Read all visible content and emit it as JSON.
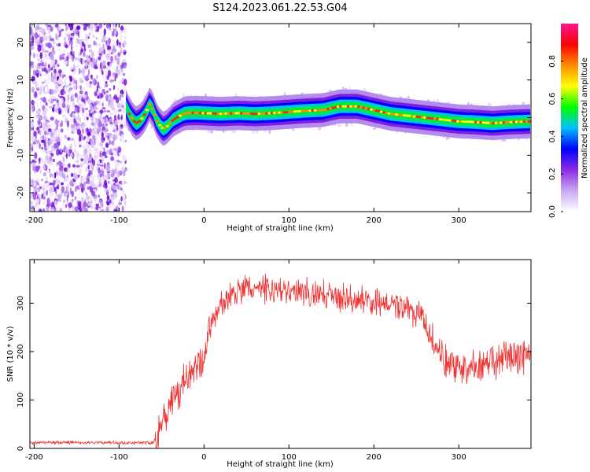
{
  "figure": {
    "title": "S124.2023.061.22.53.G04"
  },
  "chart_data": [
    {
      "type": "heatmap",
      "title": "S124.2023.061.22.53.G04",
      "xlabel": "Height of straight line (km)",
      "ylabel": "Frequency (Hz)",
      "xlim": [
        -205,
        385
      ],
      "ylim": [
        -25,
        25
      ],
      "xticks": [
        -200,
        -100,
        0,
        100,
        200,
        300
      ],
      "yticks": [
        -20,
        -10,
        0,
        10,
        20
      ],
      "colorbar": {
        "label": "Normalized spectral amplitude",
        "ticks": [
          0.0,
          0.2,
          0.4,
          0.6,
          0.8
        ],
        "range": [
          0,
          1
        ],
        "colors": [
          "#ffffff",
          "#c9a8f2",
          "#8a2be2",
          "#0000ff",
          "#00bfff",
          "#00ff00",
          "#ffff00",
          "#ff8c00",
          "#ff0000",
          "#ff1493"
        ]
      },
      "noise_region_x": [
        -205,
        -92
      ],
      "ridge": {
        "x": [
          -92,
          -88,
          -84,
          -80,
          -76,
          -72,
          -68,
          -64,
          -60,
          -56,
          -52,
          -48,
          -44,
          -40,
          -36,
          -32,
          -28,
          -24,
          -20,
          -10,
          0,
          20,
          40,
          60,
          80,
          100,
          120,
          140,
          160,
          180,
          200,
          220,
          240,
          260,
          280,
          300,
          320,
          340,
          360,
          385
        ],
        "frequency": [
          3.0,
          1.0,
          -0.5,
          -1.5,
          -1.0,
          0.0,
          1.5,
          3.5,
          2.0,
          -0.5,
          -2.0,
          -3.0,
          -2.5,
          -1.5,
          -0.5,
          0.0,
          0.5,
          1.0,
          1.2,
          1.3,
          1.2,
          1.0,
          1.2,
          1.0,
          1.2,
          1.5,
          1.8,
          2.0,
          3.0,
          3.0,
          2.0,
          1.0,
          0.5,
          0.0,
          -0.5,
          -1.0,
          -1.2,
          -1.5,
          -1.2,
          -1.0
        ]
      }
    },
    {
      "type": "line",
      "xlabel": "Height of straight line (km)",
      "ylabel": "SNR (10 * v/v)",
      "xlim": [
        -205,
        385
      ],
      "ylim": [
        0,
        390
      ],
      "xticks": [
        -200,
        -100,
        0,
        100,
        200,
        300
      ],
      "yticks": [
        0,
        100,
        200,
        300
      ],
      "color": "#ee3333",
      "series": [
        {
          "x": [
            -205,
            -150,
            -100,
            -60,
            -55,
            -50,
            -40,
            -30,
            -20,
            -10,
            0,
            5,
            10,
            20,
            30,
            50,
            75,
            100,
            125,
            150,
            175,
            200,
            225,
            250,
            265,
            280,
            300,
            320,
            340,
            360,
            385
          ],
          "values": [
            12,
            12,
            12,
            12,
            30,
            55,
            90,
            115,
            140,
            160,
            185,
            240,
            265,
            295,
            315,
            330,
            328,
            325,
            320,
            315,
            310,
            305,
            295,
            280,
            240,
            190,
            160,
            165,
            175,
            185,
            195
          ]
        }
      ]
    }
  ]
}
